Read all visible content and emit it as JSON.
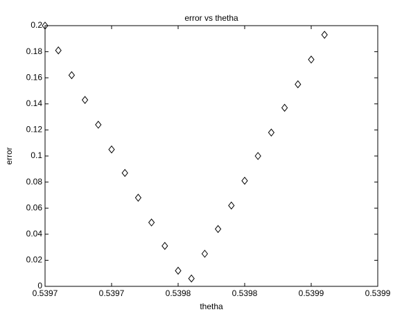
{
  "chart_data": {
    "type": "scatter",
    "title": "error vs thetha",
    "x_label": "thetha",
    "y_label": "error",
    "series": [
      {
        "name": "error",
        "color": "#000000",
        "marker": "diamond",
        "x": [
          0.5397,
          0.539708,
          0.539716,
          0.539724,
          0.539732,
          0.53974,
          0.539748,
          0.539756,
          0.539764,
          0.539772,
          0.53978,
          0.539788,
          0.539796,
          0.539804,
          0.539812,
          0.53982,
          0.539828,
          0.539836,
          0.539844,
          0.539852,
          0.53986,
          0.539868
        ],
        "values": [
          0.2,
          0.181,
          0.162,
          0.143,
          0.124,
          0.105,
          0.087,
          0.068,
          0.049,
          0.031,
          0.012,
          0.006,
          0.025,
          0.044,
          0.062,
          0.081,
          0.1,
          0.118,
          0.137,
          0.155,
          0.174,
          0.193
        ]
      }
    ],
    "xlim": [
      0.5397,
      0.5399
    ],
    "xticks": [
      {
        "value": 0.5397,
        "label": "0.5397"
      },
      {
        "value": 0.53974,
        "label": "0.5397"
      },
      {
        "value": 0.53978,
        "label": "0.5398"
      },
      {
        "value": 0.53982,
        "label": "0.5398"
      },
      {
        "value": 0.53986,
        "label": "0.5399"
      },
      {
        "value": 0.5399,
        "label": "0.5399"
      }
    ],
    "ylim": [
      0,
      0.2
    ],
    "yticks": [
      0,
      0.02,
      0.04,
      0.06,
      0.08,
      0.1,
      0.12,
      0.14,
      0.16,
      0.18,
      0.2
    ],
    "grid": false
  }
}
